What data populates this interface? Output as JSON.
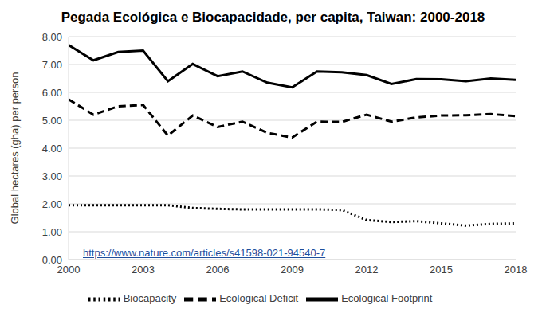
{
  "chart_data": {
    "type": "line",
    "title": "Pegada Ecológica e Biocapacidade, per capita, Taiwan: 2000-2018",
    "y_label": "Global hectares (gha) per person",
    "annotation": "https://www.nature.com/articles/s41598-021-94540-7",
    "x": [
      2000,
      2001,
      2002,
      2003,
      2004,
      2005,
      2006,
      2007,
      2008,
      2009,
      2010,
      2011,
      2012,
      2013,
      2014,
      2015,
      2016,
      2017,
      2018
    ],
    "series": [
      {
        "name": "Ecological Footprint",
        "color": "#000000",
        "line_style": "solid",
        "marker": "none",
        "values": [
          7.7,
          7.15,
          7.45,
          7.5,
          6.4,
          7.02,
          6.58,
          6.75,
          6.35,
          6.18,
          6.75,
          6.72,
          6.62,
          6.3,
          6.48,
          6.47,
          6.4,
          6.5,
          6.45
        ]
      },
      {
        "name": "Biocapacity",
        "color": "#000000",
        "line_style": "dotted",
        "marker": "none",
        "values": [
          1.95,
          1.95,
          1.95,
          1.95,
          1.95,
          1.85,
          1.82,
          1.8,
          1.8,
          1.8,
          1.8,
          1.78,
          1.42,
          1.35,
          1.38,
          1.3,
          1.22,
          1.28,
          1.3
        ]
      },
      {
        "name": "Ecological Deficit",
        "color": "#000000",
        "line_style": "dashed",
        "marker": "none",
        "values": [
          5.75,
          5.2,
          5.5,
          5.55,
          4.45,
          5.17,
          4.76,
          4.95,
          4.55,
          4.38,
          4.95,
          4.94,
          5.2,
          4.95,
          5.1,
          5.17,
          5.18,
          5.22,
          5.15
        ]
      }
    ],
    "xlim": [
      2000,
      2018
    ],
    "xticks": [
      2000,
      2003,
      2006,
      2009,
      2012,
      2015,
      2018
    ],
    "ylim": [
      0,
      8
    ],
    "yticks": [
      {
        "value": 0,
        "label": "0.00"
      },
      {
        "value": 1,
        "label": "1.00"
      },
      {
        "value": 2,
        "label": "2.00"
      },
      {
        "value": 3,
        "label": "3.00"
      },
      {
        "value": 4,
        "label": "4.00"
      },
      {
        "value": 5,
        "label": "5.00"
      },
      {
        "value": 6,
        "label": "6.00"
      },
      {
        "value": 7,
        "label": "7.00"
      },
      {
        "value": 8,
        "label": "8.00"
      }
    ],
    "grid": true,
    "legend": "bottom"
  }
}
